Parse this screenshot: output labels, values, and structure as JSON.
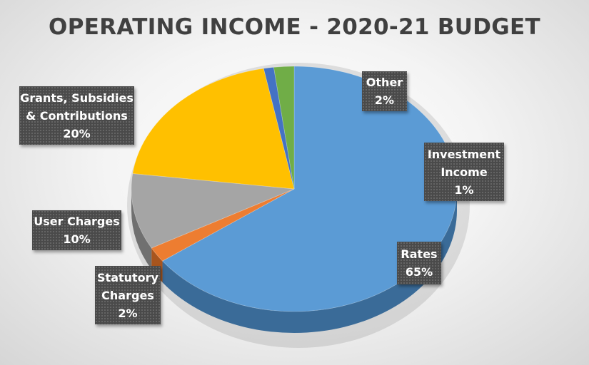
{
  "chart_data": {
    "type": "pie",
    "title": "OPERATING INCOME - 2020-21 BUDGET",
    "slices": [
      {
        "name": "Rates",
        "value": 65,
        "color": "#5b9bd5",
        "side": "#3a6b98",
        "label_lines": [
          "Rates",
          "65%"
        ]
      },
      {
        "name": "Statutory Charges",
        "value": 2,
        "color": "#ed7d31",
        "side": "#a8551e",
        "label_lines": [
          "Statutory",
          "Charges",
          "2%"
        ]
      },
      {
        "name": "User Charges",
        "value": 10,
        "color": "#a5a5a5",
        "side": "#707070",
        "label_lines": [
          "User Charges",
          "10%"
        ]
      },
      {
        "name": "Grants, Subsidies & Contributions",
        "value": 20,
        "color": "#ffc000",
        "side": "#b38600",
        "label_lines": [
          "Grants,  Subsidies",
          "& Contributions",
          "20%"
        ]
      },
      {
        "name": "Investment Income",
        "value": 1,
        "color": "#4472c4",
        "side": "#2e4f8a",
        "label_lines": [
          "Investment",
          "Income",
          "1%"
        ]
      },
      {
        "name": "Other",
        "value": 2,
        "color": "#70ad47",
        "side": "#4d7a30",
        "label_lines": [
          "Other",
          "2%"
        ]
      }
    ],
    "style": "3d-pie",
    "data_labels": "boxed, outside"
  }
}
